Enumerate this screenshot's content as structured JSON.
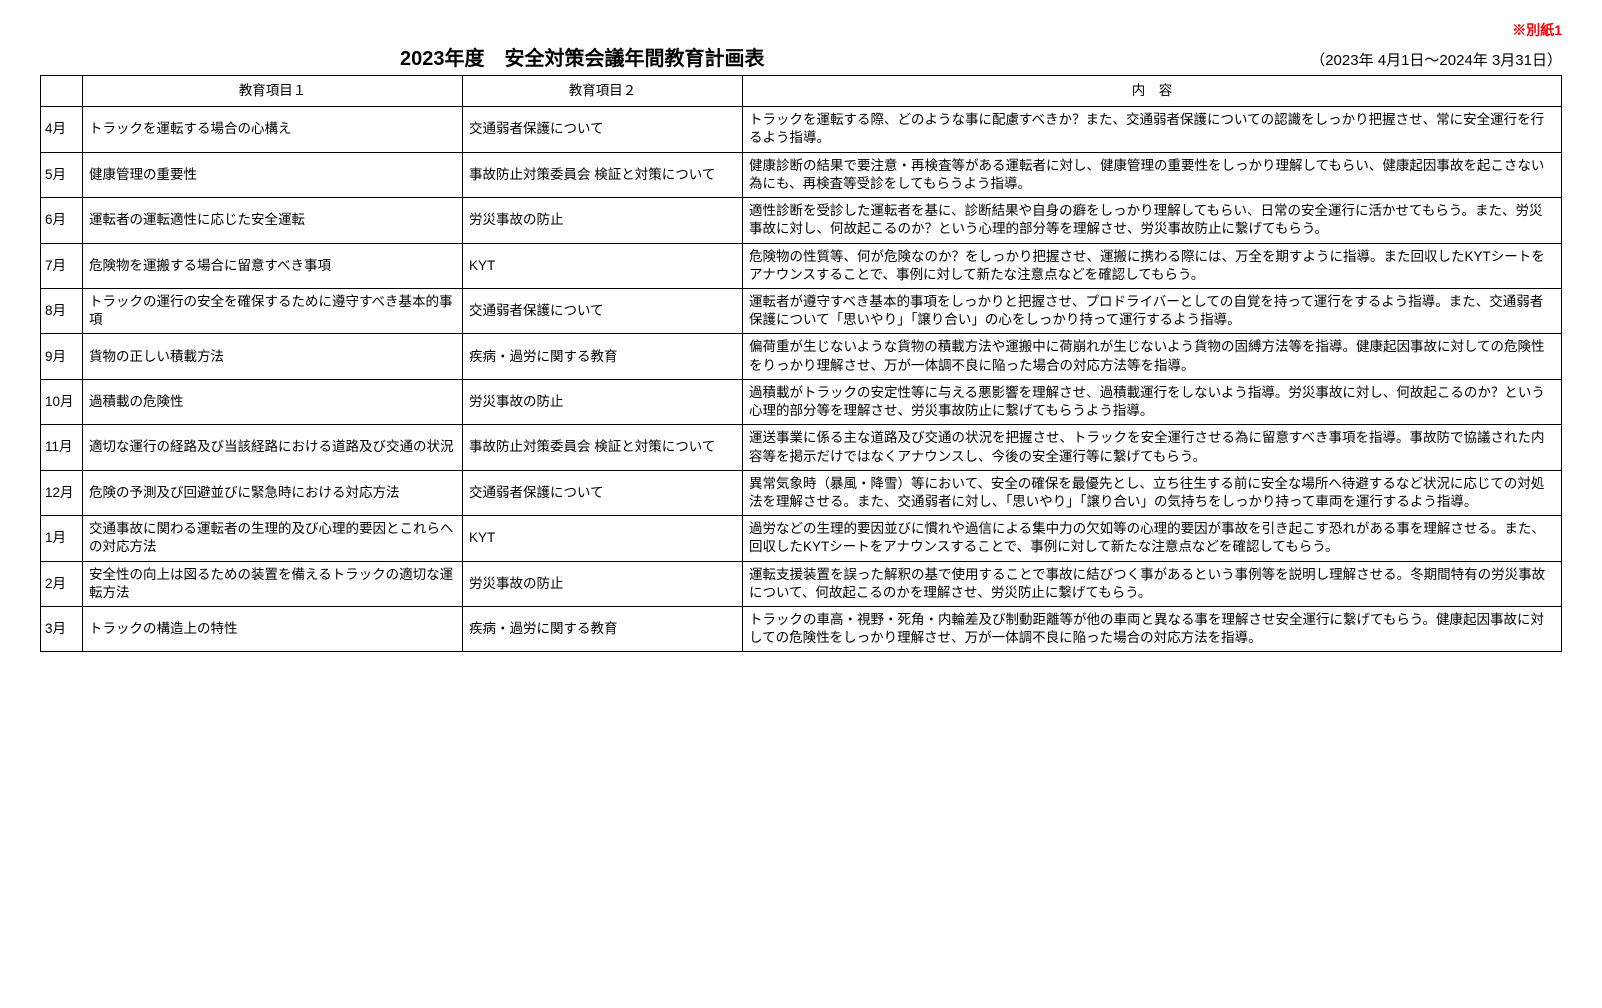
{
  "header": {
    "note": "※別紙1",
    "title": "2023年度　安全対策会議年間教育計画表",
    "date_range": "（2023年 4月1日～2024年 3月31日）"
  },
  "table": {
    "headers": {
      "month": "",
      "item1": "教育項目１",
      "item2": "教育項目２",
      "content": "内　容"
    },
    "rows": [
      {
        "month": "4月",
        "item1": "トラックを運転する場合の心構え",
        "item2": "交通弱者保護について",
        "content": "トラックを運転する際、どのような事に配慮すべきか？また、交通弱者保護についての認識をしっかり把握させ、常に安全運行を行るよう指導。"
      },
      {
        "month": "5月",
        "item1": "健康管理の重要性",
        "item2": "事故防止対策委員会 検証と対策について",
        "content": "健康診断の結果で要注意・再検査等がある運転者に対し、健康管理の重要性をしっかり理解してもらい、健康起因事故を起こさない為にも、再検査等受診をしてもらうよう指導。"
      },
      {
        "month": "6月",
        "item1": "運転者の運転適性に応じた安全運転",
        "item2": "労災事故の防止",
        "content": "適性診断を受診した運転者を基に、診断結果や自身の癖をしっかり理解してもらい、日常の安全運行に活かせてもらう。また、労災事故に対し、何故起こるのか？という心理的部分等を理解させ、労災事故防止に繋げてもらう。"
      },
      {
        "month": "7月",
        "item1": "危険物を運搬する場合に留意すべき事項",
        "item2": "KYT",
        "content": "危険物の性質等、何が危険なのか？をしっかり把握させ、運搬に携わる際には、万全を期すように指導。また回収したKYTシートをアナウンスすることで、事例に対して新たな注意点などを確認してもらう。"
      },
      {
        "month": "8月",
        "item1": "トラックの運行の安全を確保するために遵守すべき基本的事項",
        "item2": "交通弱者保護について",
        "content": "運転者が遵守すべき基本的事項をしっかりと把握させ、プロドライバーとしての自覚を持って運行をするよう指導。また、交通弱者保護について「思いやり」「譲り合い」の心をしっかり持って運行するよう指導。"
      },
      {
        "month": "9月",
        "item1": "貨物の正しい積載方法",
        "item2": "疾病・過労に関する教育",
        "content": "偏荷重が生じないような貨物の積載方法や運搬中に荷崩れが生じないよう貨物の固縛方法等を指導。健康起因事故に対しての危険性をりっかり理解させ、万が一体調不良に陥った場合の対応方法等を指導。"
      },
      {
        "month": "10月",
        "item1": "過積載の危険性",
        "item2": "労災事故の防止",
        "content": "過積載がトラックの安定性等に与える悪影響を理解させ、過積載運行をしないよう指導。労災事故に対し、何故起こるのか？という心理的部分等を理解させ、労災事故防止に繋げてもらうよう指導。"
      },
      {
        "month": "11月",
        "item1": "適切な運行の経路及び当該経路における道路及び交通の状況",
        "item2": "事故防止対策委員会 検証と対策について",
        "content": "運送事業に係る主な道路及び交通の状況を把握させ、トラックを安全運行させる為に留意すべき事項を指導。事故防で協議された内容等を掲示だけではなくアナウンスし、今後の安全運行等に繋げてもらう。"
      },
      {
        "month": "12月",
        "item1": "危険の予測及び回避並びに緊急時における対応方法",
        "item2": "交通弱者保護について",
        "content": "異常気象時（暴風・降雪）等において、安全の確保を最優先とし、立ち往生する前に安全な場所へ待避するなど状況に応じての対処法を理解させる。また、交通弱者に対し、「思いやり」「譲り合い」の気持ちをしっかり持って車両を運行するよう指導。"
      },
      {
        "month": "1月",
        "item1": "交通事故に関わる運転者の生理的及び心理的要因とこれらへの対応方法",
        "item2": "KYT",
        "content": "過労などの生理的要因並びに慣れや過信による集中力の欠如等の心理的要因が事故を引き起こす恐れがある事を理解させる。また、回収したKYTシートをアナウンスすることで、事例に対して新たな注意点などを確認してもらう。"
      },
      {
        "month": "2月",
        "item1": "安全性の向上は図るための装置を備えるトラックの適切な運転方法",
        "item2": "労災事故の防止",
        "content": "運転支援装置を誤った解釈の基で使用することで事故に結びつく事があるという事例等を説明し理解させる。冬期間特有の労災事故について、何故起こるのかを理解させ、労災防止に繋げてもらう。"
      },
      {
        "month": "3月",
        "item1": "トラックの構造上の特性",
        "item2": "疾病・過労に関する教育",
        "content": "トラックの車高・視野・死角・内輪差及び制動距離等が他の車両と異なる事を理解させ安全運行に繋げてもらう。健康起因事故に対しての危険性をしっかり理解させ、万が一体調不良に陥った場合の対応方法を指導。"
      }
    ]
  }
}
